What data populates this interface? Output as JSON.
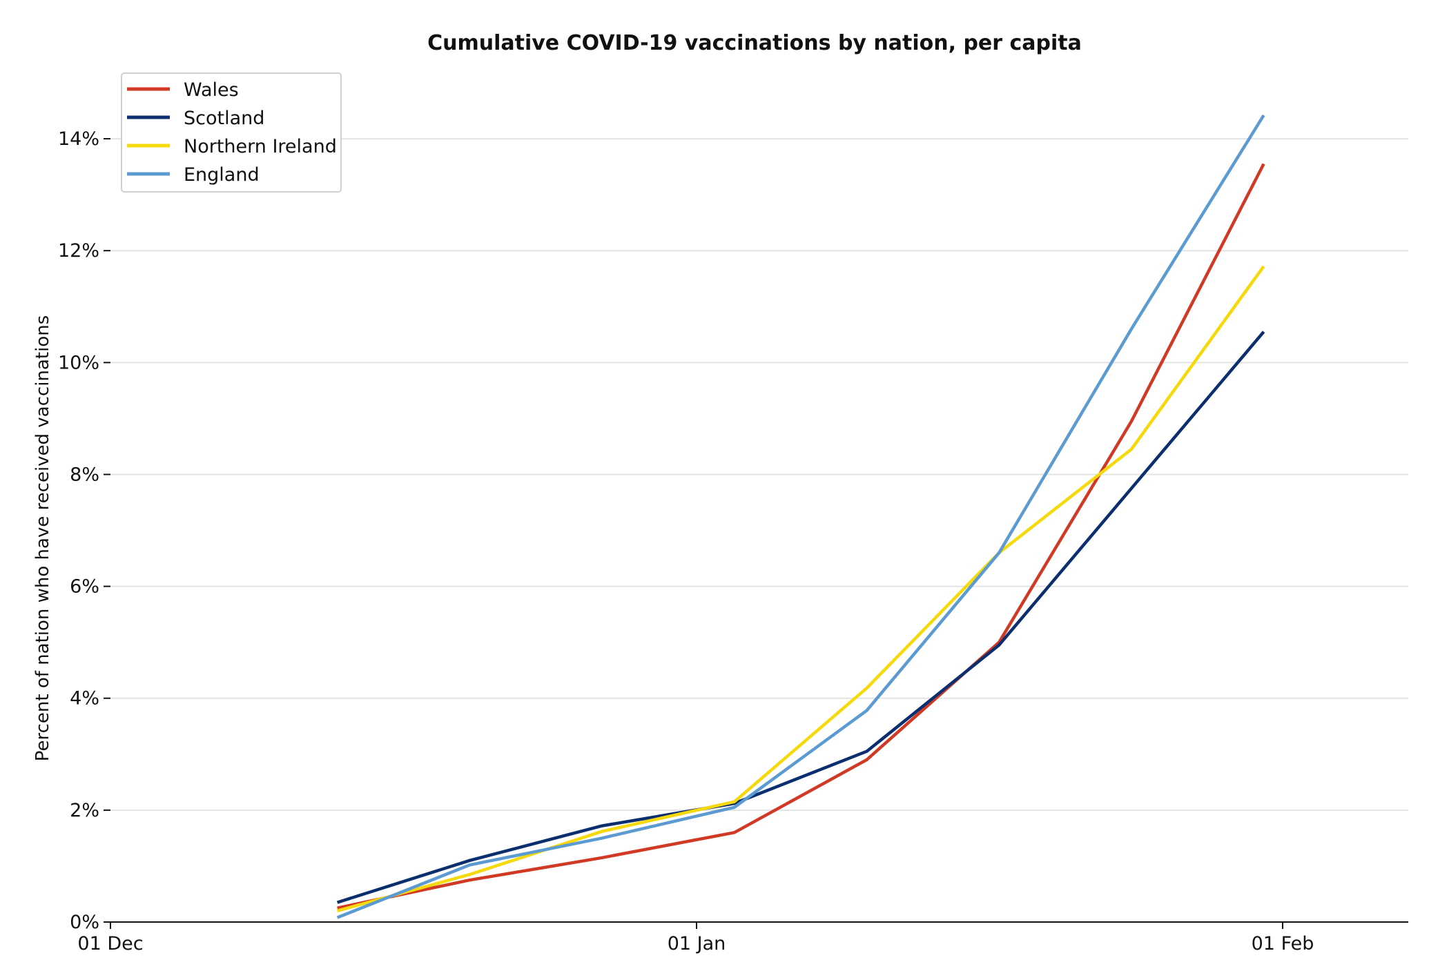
{
  "chart_data": {
    "type": "line",
    "title": "Cumulative COVID-19 vaccinations by nation, per capita",
    "xlabel": "",
    "ylabel": "Percent of nation who have received vaccinations",
    "x_tick_labels": [
      {
        "date": "2020-12-01",
        "label": "01 Dec"
      },
      {
        "date": "2021-01-01",
        "label": "01 Jan"
      },
      {
        "date": "2021-02-01",
        "label": "01 Feb"
      }
    ],
    "xlim": [
      "2020-12-01",
      "2021-02-07"
    ],
    "y_tick_labels": [
      "0%",
      "2%",
      "4%",
      "6%",
      "8%",
      "10%",
      "12%",
      "14%"
    ],
    "y_ticks": [
      0,
      2,
      4,
      6,
      8,
      10,
      12,
      14
    ],
    "ylim": [
      0,
      15
    ],
    "grid": "horizontal",
    "legend_position": "top-left",
    "x": [
      "2020-12-13",
      "2020-12-20",
      "2020-12-27",
      "2021-01-03",
      "2021-01-10",
      "2021-01-17",
      "2021-01-24",
      "2021-01-31"
    ],
    "series": [
      {
        "name": "Wales",
        "color": "#d03a25",
        "values": [
          0.25,
          0.75,
          1.15,
          1.6,
          2.9,
          5.0,
          8.95,
          13.55
        ]
      },
      {
        "name": "Scotland",
        "color": "#0b2f6e",
        "values": [
          0.35,
          1.1,
          1.72,
          2.12,
          3.05,
          4.95,
          7.75,
          10.55
        ]
      },
      {
        "name": "Northern Ireland",
        "color": "#f5d90a",
        "values": [
          0.2,
          0.85,
          1.62,
          2.15,
          4.18,
          6.6,
          8.45,
          11.72
        ]
      },
      {
        "name": "England",
        "color": "#5b9bd1",
        "values": [
          0.08,
          1.02,
          1.5,
          2.05,
          3.78,
          6.6,
          10.6,
          14.42
        ]
      }
    ]
  }
}
